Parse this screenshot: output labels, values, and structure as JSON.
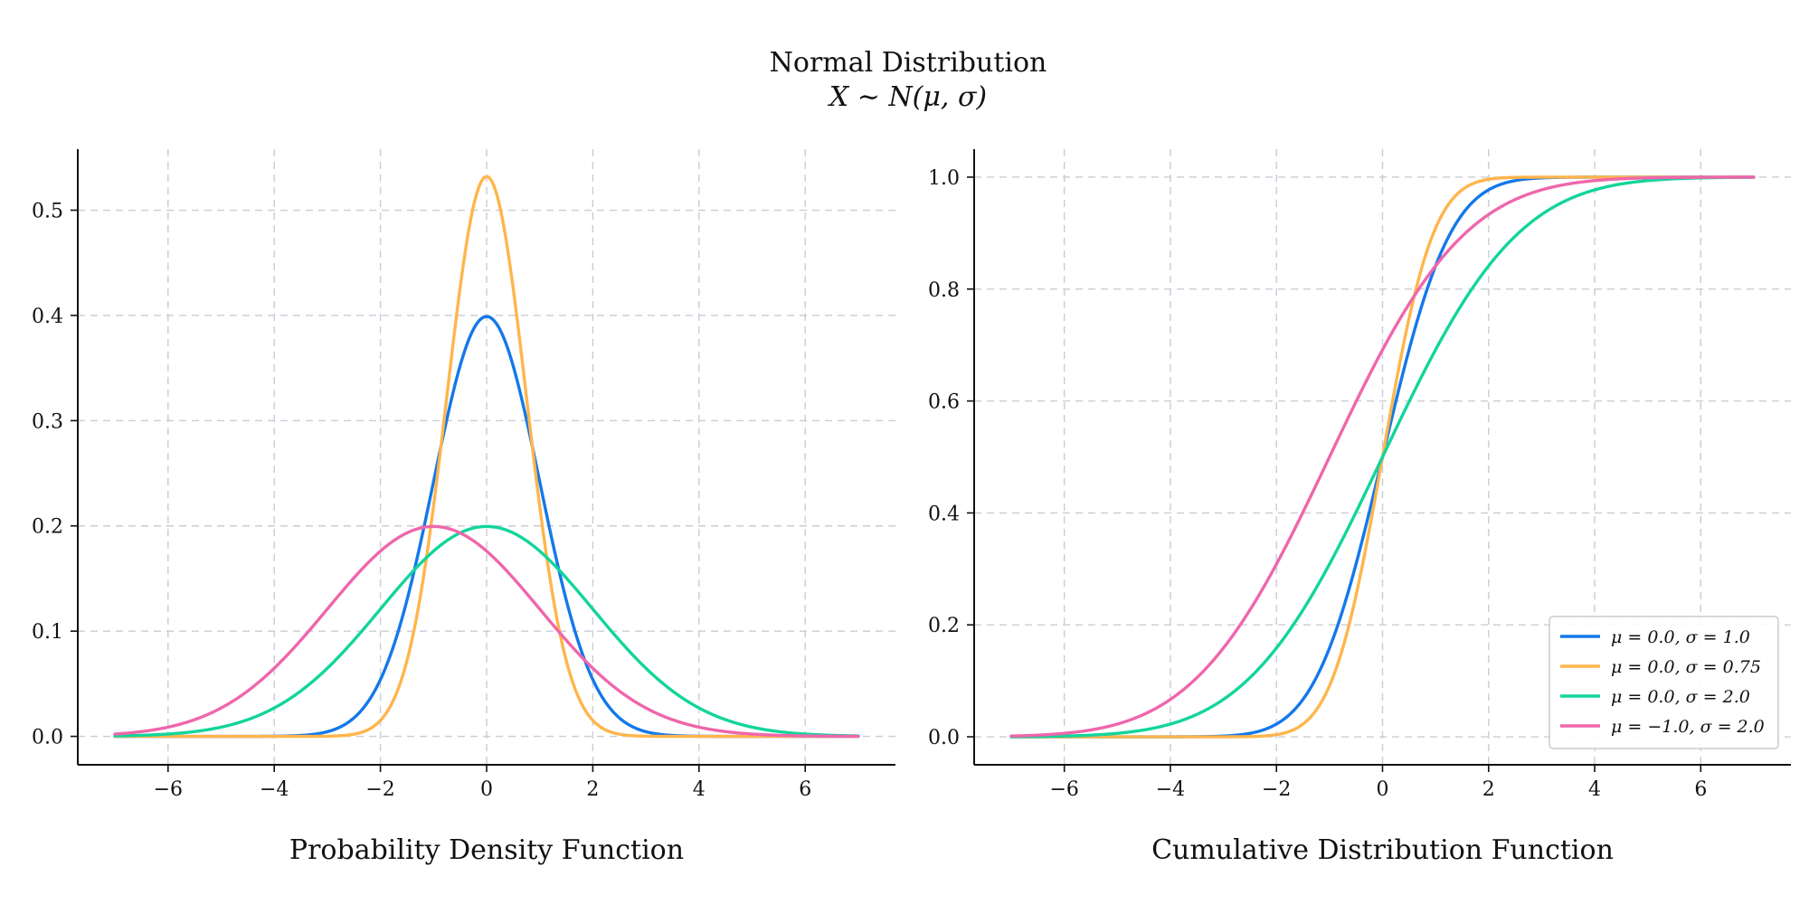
{
  "figure": {
    "title": "Normal Distribution",
    "subtitle": "X ∼ N(μ, σ)"
  },
  "chart_data": [
    {
      "type": "line",
      "xlabel": "Probability Density Function",
      "ylabel": "",
      "xlim": [
        -7.7,
        7.7
      ],
      "ylim": [
        -0.027,
        0.558
      ],
      "xticks": [
        -6,
        -4,
        -2,
        0,
        2,
        4,
        6
      ],
      "xtick_labels": [
        "−6",
        "−4",
        "−2",
        "0",
        "2",
        "4",
        "6"
      ],
      "yticks": [
        0.0,
        0.1,
        0.2,
        0.3,
        0.4,
        0.5
      ],
      "ytick_labels": [
        "0.0",
        "0.1",
        "0.2",
        "0.3",
        "0.4",
        "0.5"
      ],
      "grid": true,
      "function": "pdf",
      "x_range": [
        -7,
        7
      ],
      "series": [
        {
          "label": "μ = 0.0, σ = 1.0",
          "mu": 0.0,
          "sigma": 1.0,
          "color": "#1478ea"
        },
        {
          "label": "μ = 0.0, σ = 0.75",
          "mu": 0.0,
          "sigma": 0.75,
          "color": "#ffb54c"
        },
        {
          "label": "μ = 0.0, σ = 2.0",
          "mu": 0.0,
          "sigma": 2.0,
          "color": "#12d59b"
        },
        {
          "label": "μ = −1.0, σ = 2.0",
          "mu": -1.0,
          "sigma": 2.0,
          "color": "#ef66ac"
        }
      ]
    },
    {
      "type": "line",
      "xlabel": "Cumulative Distribution Function",
      "ylabel": "",
      "xlim": [
        -7.7,
        7.7
      ],
      "ylim": [
        -0.05,
        1.05
      ],
      "xticks": [
        -6,
        -4,
        -2,
        0,
        2,
        4,
        6
      ],
      "xtick_labels": [
        "−6",
        "−4",
        "−2",
        "0",
        "2",
        "4",
        "6"
      ],
      "yticks": [
        0.0,
        0.2,
        0.4,
        0.6,
        0.8,
        1.0
      ],
      "ytick_labels": [
        "0.0",
        "0.2",
        "0.4",
        "0.6",
        "0.8",
        "1.0"
      ],
      "grid": true,
      "function": "cdf",
      "x_range": [
        -7,
        7
      ],
      "legend": "bottom-right",
      "series": [
        {
          "label": "μ = 0.0, σ = 1.0",
          "mu": 0.0,
          "sigma": 1.0,
          "color": "#1478ea"
        },
        {
          "label": "μ = 0.0, σ = 0.75",
          "mu": 0.0,
          "sigma": 0.75,
          "color": "#ffb54c"
        },
        {
          "label": "μ = 0.0, σ = 2.0",
          "mu": 0.0,
          "sigma": 2.0,
          "color": "#12d59b"
        },
        {
          "label": "μ = −1.0, σ = 2.0",
          "mu": -1.0,
          "sigma": 2.0,
          "color": "#ef66ac"
        }
      ]
    }
  ]
}
